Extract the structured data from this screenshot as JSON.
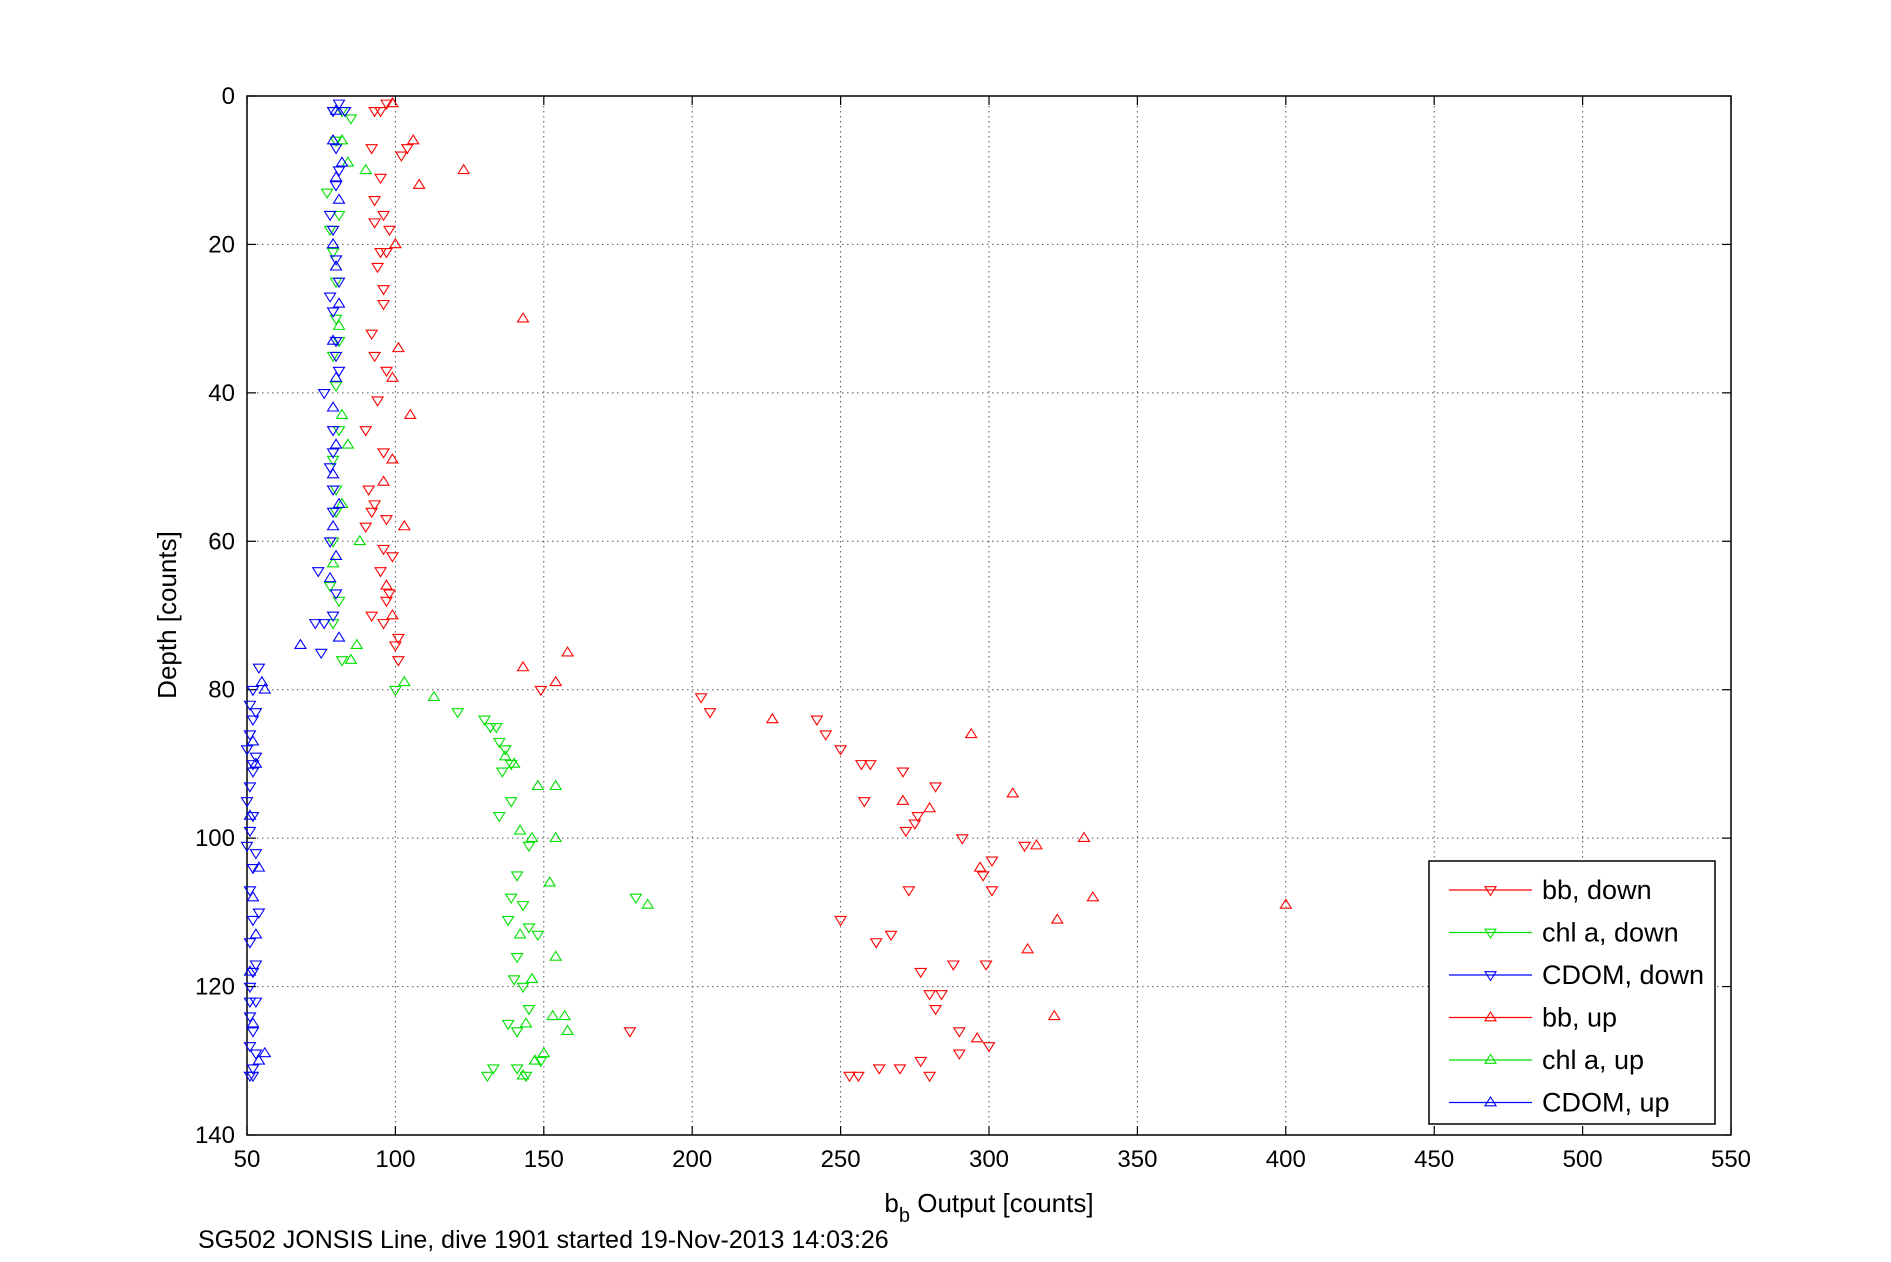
{
  "footer": "SG502 JONSIS Line, dive 1901 started 19-Nov-2013 14:03:26",
  "chart_data": {
    "type": "scatter",
    "title": "",
    "xlabel_main": "b",
    "xlabel_sub": "b",
    "xlabel_rest": " Output [counts]",
    "ylabel": "Depth [counts]",
    "xlim": [
      50,
      550
    ],
    "ylim": [
      140,
      0
    ],
    "y_reversed": true,
    "grid": true,
    "legend_position": "bottom-right",
    "x_ticks": [
      "50",
      "100",
      "150",
      "200",
      "250",
      "300",
      "350",
      "400",
      "450",
      "500",
      "550"
    ],
    "y_ticks": [
      "0",
      "20",
      "40",
      "60",
      "80",
      "100",
      "120",
      "140"
    ],
    "series": [
      {
        "name": "bb, down",
        "marker": "triangle-down",
        "color": "#ff0000",
        "points": [
          [
            97,
            1
          ],
          [
            95,
            2
          ],
          [
            93,
            2
          ],
          [
            104,
            7
          ],
          [
            92,
            7
          ],
          [
            102,
            8
          ],
          [
            95,
            11
          ],
          [
            93,
            14
          ],
          [
            96,
            16
          ],
          [
            93,
            17
          ],
          [
            98,
            18
          ],
          [
            95,
            21
          ],
          [
            97,
            21
          ],
          [
            94,
            23
          ],
          [
            96,
            26
          ],
          [
            96,
            28
          ],
          [
            92,
            32
          ],
          [
            93,
            35
          ],
          [
            97,
            37
          ],
          [
            94,
            41
          ],
          [
            90,
            45
          ],
          [
            96,
            48
          ],
          [
            91,
            53
          ],
          [
            93,
            55
          ],
          [
            92,
            56
          ],
          [
            97,
            57
          ],
          [
            90,
            58
          ],
          [
            96,
            61
          ],
          [
            99,
            62
          ],
          [
            95,
            64
          ],
          [
            98,
            67
          ],
          [
            97,
            68
          ],
          [
            92,
            70
          ],
          [
            96,
            71
          ],
          [
            101,
            73
          ],
          [
            100,
            74
          ],
          [
            101,
            76
          ],
          [
            149,
            80
          ],
          [
            203,
            81
          ],
          [
            206,
            83
          ],
          [
            242,
            84
          ],
          [
            245,
            86
          ],
          [
            250,
            88
          ],
          [
            257,
            90
          ],
          [
            260,
            90
          ],
          [
            271,
            91
          ],
          [
            282,
            93
          ],
          [
            258,
            95
          ],
          [
            276,
            97
          ],
          [
            275,
            98
          ],
          [
            272,
            99
          ],
          [
            291,
            100
          ],
          [
            312,
            101
          ],
          [
            301,
            103
          ],
          [
            298,
            105
          ],
          [
            273,
            107
          ],
          [
            301,
            107
          ],
          [
            250,
            111
          ],
          [
            262,
            114
          ],
          [
            267,
            113
          ],
          [
            288,
            117
          ],
          [
            299,
            117
          ],
          [
            277,
            118
          ],
          [
            284,
            121
          ],
          [
            280,
            121
          ],
          [
            282,
            123
          ],
          [
            290,
            126
          ],
          [
            290,
            129
          ],
          [
            300,
            128
          ],
          [
            277,
            130
          ],
          [
            263,
            131
          ],
          [
            256,
            132
          ],
          [
            253,
            132
          ],
          [
            270,
            131
          ],
          [
            280,
            132
          ],
          [
            179,
            126
          ]
        ]
      },
      {
        "name": "chl a, down",
        "marker": "triangle-down",
        "color": "#00e000",
        "points": [
          [
            79,
            2
          ],
          [
            82,
            2
          ],
          [
            85,
            3
          ],
          [
            80,
            6
          ],
          [
            77,
            13
          ],
          [
            81,
            16
          ],
          [
            78,
            18
          ],
          [
            79,
            21
          ],
          [
            80,
            25
          ],
          [
            80,
            30
          ],
          [
            81,
            33
          ],
          [
            79,
            35
          ],
          [
            80,
            39
          ],
          [
            81,
            45
          ],
          [
            79,
            49
          ],
          [
            80,
            53
          ],
          [
            80,
            56
          ],
          [
            79,
            60
          ],
          [
            78,
            66
          ],
          [
            81,
            68
          ],
          [
            79,
            71
          ],
          [
            82,
            76
          ],
          [
            100,
            80
          ],
          [
            121,
            83
          ],
          [
            130,
            84
          ],
          [
            134,
            85
          ],
          [
            132,
            85
          ],
          [
            135,
            87
          ],
          [
            137,
            88
          ],
          [
            139,
            90
          ],
          [
            136,
            91
          ],
          [
            139,
            95
          ],
          [
            135,
            97
          ],
          [
            145,
            101
          ],
          [
            141,
            105
          ],
          [
            139,
            108
          ],
          [
            143,
            109
          ],
          [
            181,
            108
          ],
          [
            138,
            111
          ],
          [
            145,
            112
          ],
          [
            148,
            113
          ],
          [
            141,
            116
          ],
          [
            140,
            119
          ],
          [
            143,
            120
          ],
          [
            145,
            123
          ],
          [
            138,
            125
          ],
          [
            141,
            126
          ],
          [
            149,
            130
          ],
          [
            141,
            131
          ],
          [
            133,
            131
          ],
          [
            131,
            132
          ],
          [
            144,
            132
          ]
        ]
      },
      {
        "name": "CDOM, down",
        "marker": "triangle-down",
        "color": "#0000ff",
        "points": [
          [
            81,
            1
          ],
          [
            79,
            2
          ],
          [
            83,
            2
          ],
          [
            80,
            7
          ],
          [
            81,
            10
          ],
          [
            80,
            12
          ],
          [
            78,
            16
          ],
          [
            79,
            18
          ],
          [
            80,
            22
          ],
          [
            81,
            25
          ],
          [
            78,
            27
          ],
          [
            79,
            29
          ],
          [
            80,
            33
          ],
          [
            80,
            35
          ],
          [
            81,
            37
          ],
          [
            76,
            40
          ],
          [
            79,
            45
          ],
          [
            79,
            48
          ],
          [
            78,
            50
          ],
          [
            79,
            53
          ],
          [
            79,
            56
          ],
          [
            78,
            60
          ],
          [
            74,
            64
          ],
          [
            80,
            67
          ],
          [
            79,
            70
          ],
          [
            76,
            71
          ],
          [
            73,
            71
          ],
          [
            75,
            75
          ],
          [
            54,
            77
          ],
          [
            52,
            80
          ],
          [
            51,
            82
          ],
          [
            53,
            83
          ],
          [
            52,
            84
          ],
          [
            51,
            86
          ],
          [
            50,
            88
          ],
          [
            53,
            89
          ],
          [
            52,
            90
          ],
          [
            52,
            91
          ],
          [
            51,
            93
          ],
          [
            50,
            95
          ],
          [
            52,
            97
          ],
          [
            51,
            99
          ],
          [
            50,
            101
          ],
          [
            53,
            102
          ],
          [
            52,
            104
          ],
          [
            51,
            107
          ],
          [
            54,
            110
          ],
          [
            52,
            111
          ],
          [
            51,
            114
          ],
          [
            53,
            117
          ],
          [
            52,
            118
          ],
          [
            51,
            120
          ],
          [
            51,
            122
          ],
          [
            53,
            122
          ],
          [
            51,
            124
          ],
          [
            52,
            126
          ],
          [
            51,
            128
          ],
          [
            53,
            129
          ],
          [
            52,
            131
          ],
          [
            51,
            132
          ],
          [
            52,
            132
          ]
        ]
      },
      {
        "name": "bb, up",
        "marker": "triangle-up",
        "color": "#ff0000",
        "points": [
          [
            99,
            1
          ],
          [
            106,
            6
          ],
          [
            123,
            10
          ],
          [
            108,
            12
          ],
          [
            100,
            20
          ],
          [
            143,
            30
          ],
          [
            101,
            34
          ],
          [
            99,
            38
          ],
          [
            105,
            43
          ],
          [
            99,
            49
          ],
          [
            96,
            52
          ],
          [
            103,
            58
          ],
          [
            97,
            66
          ],
          [
            99,
            70
          ],
          [
            143,
            77
          ],
          [
            158,
            75
          ],
          [
            154,
            79
          ],
          [
            227,
            84
          ],
          [
            294,
            86
          ],
          [
            308,
            94
          ],
          [
            271,
            95
          ],
          [
            280,
            96
          ],
          [
            316,
            101
          ],
          [
            332,
            100
          ],
          [
            297,
            104
          ],
          [
            335,
            108
          ],
          [
            323,
            111
          ],
          [
            400,
            109
          ],
          [
            313,
            115
          ],
          [
            322,
            124
          ],
          [
            296,
            127
          ]
        ]
      },
      {
        "name": "chl a, up",
        "marker": "triangle-up",
        "color": "#00e000",
        "points": [
          [
            90,
            10
          ],
          [
            82,
            6
          ],
          [
            84,
            9
          ],
          [
            80,
            23
          ],
          [
            81,
            31
          ],
          [
            82,
            43
          ],
          [
            84,
            47
          ],
          [
            82,
            55
          ],
          [
            88,
            60
          ],
          [
            79,
            63
          ],
          [
            87,
            74
          ],
          [
            85,
            76
          ],
          [
            103,
            79
          ],
          [
            113,
            81
          ],
          [
            137,
            89
          ],
          [
            140,
            90
          ],
          [
            148,
            93
          ],
          [
            154,
            93
          ],
          [
            142,
            99
          ],
          [
            146,
            100
          ],
          [
            154,
            100
          ],
          [
            152,
            106
          ],
          [
            185,
            109
          ],
          [
            142,
            113
          ],
          [
            154,
            116
          ],
          [
            146,
            119
          ],
          [
            153,
            124
          ],
          [
            144,
            125
          ],
          [
            157,
            124
          ],
          [
            158,
            126
          ],
          [
            150,
            129
          ],
          [
            147,
            130
          ],
          [
            143,
            132
          ]
        ]
      },
      {
        "name": "CDOM, up",
        "marker": "triangle-up",
        "color": "#0000ff",
        "points": [
          [
            80,
            2
          ],
          [
            79,
            6
          ],
          [
            82,
            9
          ],
          [
            80,
            11
          ],
          [
            81,
            14
          ],
          [
            79,
            20
          ],
          [
            80,
            23
          ],
          [
            81,
            28
          ],
          [
            79,
            33
          ],
          [
            80,
            38
          ],
          [
            79,
            42
          ],
          [
            80,
            47
          ],
          [
            79,
            51
          ],
          [
            81,
            55
          ],
          [
            79,
            58
          ],
          [
            80,
            62
          ],
          [
            78,
            65
          ],
          [
            81,
            73
          ],
          [
            68,
            74
          ],
          [
            55,
            79
          ],
          [
            56,
            80
          ],
          [
            52,
            87
          ],
          [
            53,
            90
          ],
          [
            51,
            97
          ],
          [
            54,
            104
          ],
          [
            52,
            108
          ],
          [
            53,
            113
          ],
          [
            51,
            118
          ],
          [
            52,
            125
          ],
          [
            56,
            129
          ],
          [
            54,
            130
          ]
        ]
      }
    ]
  }
}
